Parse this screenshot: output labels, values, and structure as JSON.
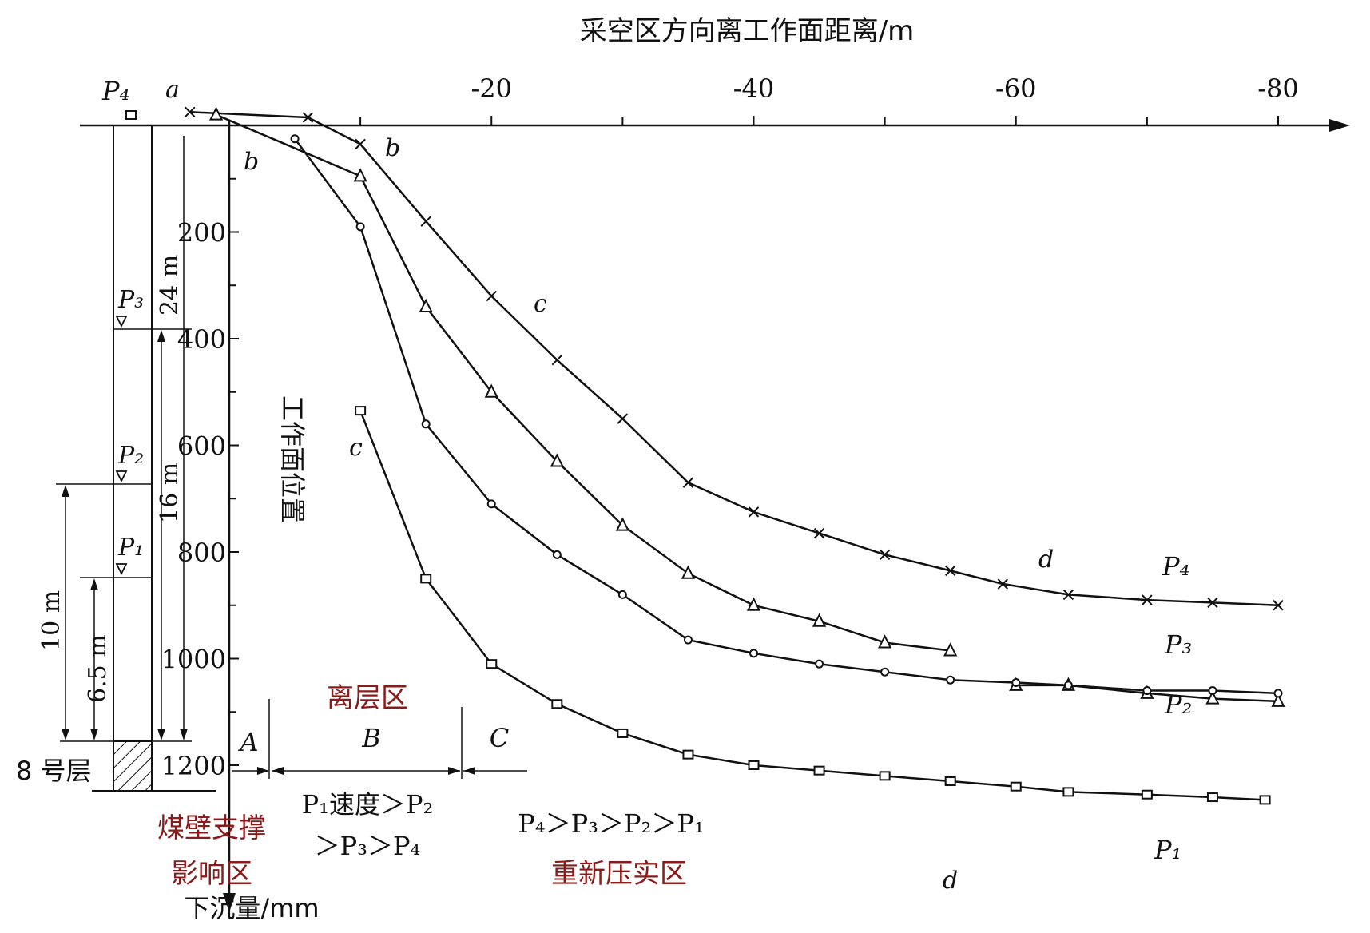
{
  "chart_data": {
    "type": "line",
    "title": "",
    "xlabel": "采空区方向离工作面距离/m",
    "ylabel": "下沉量/mm",
    "x_ticks": [
      "-20",
      "-40",
      "-60",
      "-80"
    ],
    "y_ticks": [
      "200",
      "400",
      "600",
      "800",
      "1000",
      "1200"
    ],
    "xlim": [
      0,
      -84
    ],
    "ylim": [
      -30,
      1200
    ],
    "grid": false,
    "work_face_label": "工作面位置",
    "series": [
      {
        "name": "P4",
        "marker": "cross",
        "points": [
          [
            3,
            -25
          ],
          [
            -6,
            -15
          ],
          [
            -10,
            35
          ],
          [
            -15,
            180
          ],
          [
            -20,
            320
          ],
          [
            -25,
            440
          ],
          [
            -30,
            550
          ],
          [
            -35,
            670
          ],
          [
            -40,
            725
          ],
          [
            -45,
            765
          ],
          [
            -50,
            805
          ],
          [
            -55,
            835
          ],
          [
            -59,
            860
          ],
          [
            -64,
            880
          ],
          [
            -70,
            890
          ],
          [
            -75,
            895
          ],
          [
            -80,
            900
          ]
        ],
        "labels": [
          {
            "text": "a",
            "at": [
              3,
              -25
            ]
          },
          {
            "text": "b",
            "at": [
              -10,
              35
            ]
          },
          {
            "text": "c",
            "at": [
              -20,
              320
            ]
          },
          {
            "text": "d",
            "at": [
              -57,
              825
            ]
          }
        ]
      },
      {
        "name": "P3",
        "marker": "triangle",
        "segments": [
          [
            [
              1,
              -20
            ],
            [
              -10,
              95
            ],
            [
              -15,
              340
            ],
            [
              -20,
              500
            ],
            [
              -25,
              630
            ],
            [
              -30,
              750
            ],
            [
              -35,
              840
            ],
            [
              -40,
              900
            ],
            [
              -45,
              930
            ],
            [
              -50,
              970
            ],
            [
              -55,
              985
            ]
          ],
          [
            [
              -60,
              1050
            ],
            [
              -64,
              1050
            ],
            [
              -70,
              1065
            ],
            [
              -75,
              1075
            ],
            [
              -80,
              1080
            ]
          ]
        ]
      },
      {
        "name": "P2",
        "marker": "circle",
        "points": [
          [
            -5,
            25
          ],
          [
            -10,
            190
          ],
          [
            -15,
            560
          ],
          [
            -20,
            710
          ],
          [
            -25,
            805
          ],
          [
            -30,
            880
          ],
          [
            -35,
            965
          ],
          [
            -40,
            990
          ],
          [
            -45,
            1010
          ],
          [
            -50,
            1025
          ],
          [
            -55,
            1040
          ],
          [
            -60,
            1045
          ],
          [
            -64,
            1050
          ],
          [
            -70,
            1060
          ],
          [
            -75,
            1060
          ],
          [
            -80,
            1065
          ]
        ]
      },
      {
        "name": "P1",
        "marker": "square",
        "points": [
          [
            -10,
            535
          ],
          [
            -15,
            850
          ],
          [
            -20,
            1010
          ],
          [
            -25,
            1085
          ],
          [
            -30,
            1140
          ],
          [
            -35,
            1180
          ],
          [
            -40,
            1200
          ],
          [
            -45,
            1210
          ],
          [
            -50,
            1220
          ],
          [
            -55,
            1230
          ],
          [
            -60,
            1240
          ],
          [
            -64,
            1250
          ],
          [
            -70,
            1255
          ],
          [
            -75,
            1260
          ],
          [
            -79,
            1265
          ]
        ],
        "labels": [
          {
            "text": "c",
            "at": [
              -9,
              570
            ]
          },
          {
            "text": "d",
            "at": [
              -55,
              1275
            ]
          }
        ]
      }
    ],
    "extra_marks": [
      {
        "text": "P4",
        "marker": "square",
        "note": "P4 reference point at top-left"
      }
    ],
    "stratum": {
      "layer_label": "8 号层",
      "dims": [
        "24 m",
        "16 m",
        "10 m",
        "6.5 m"
      ],
      "points": [
        "P4",
        "P3",
        "P2",
        "P1"
      ]
    },
    "zones": [
      {
        "letter": "A",
        "name": "煤壁支撑影响区"
      },
      {
        "letter": "B",
        "name": "离层区",
        "rule": "P1速度>P2>P3>P4"
      },
      {
        "letter": "C",
        "name": "重新压实区",
        "rule": "P4>P3>P2>P1"
      }
    ]
  },
  "text": {
    "x_title": "采空区方向离工作面距离/m",
    "y_title": "下沉量/mm",
    "vertical_label": "工作面位置",
    "layer": "8 号层",
    "dim24": "24 m",
    "dim16": "16 m",
    "dim10": "10 m",
    "dim65": "6.5 m",
    "zoneA": "A",
    "zoneB": "B",
    "zoneC": "C",
    "zoneA_name_1": "煤壁支撑",
    "zoneA_name_2": "影响区",
    "zoneB_name": "离层区",
    "zoneC_name": "重新压实区",
    "rule_b_1": "P₁速度＞P₂",
    "rule_b_2": "＞P₃＞P₄",
    "rule_c": "P₄＞P₃＞P₂＞P₁",
    "label_P4_top": "P₄",
    "label_a": "a",
    "label_b1": "b",
    "label_b2": "b",
    "label_c1": "c",
    "label_c2": "c",
    "label_d1": "d",
    "label_d2": "d",
    "label_P4": "P₄",
    "label_P3": "P₃",
    "label_P2": "P₂",
    "label_P1": "P₁",
    "strat_P3": "P₃",
    "strat_P2": "P₂",
    "strat_P1": "P₁"
  }
}
